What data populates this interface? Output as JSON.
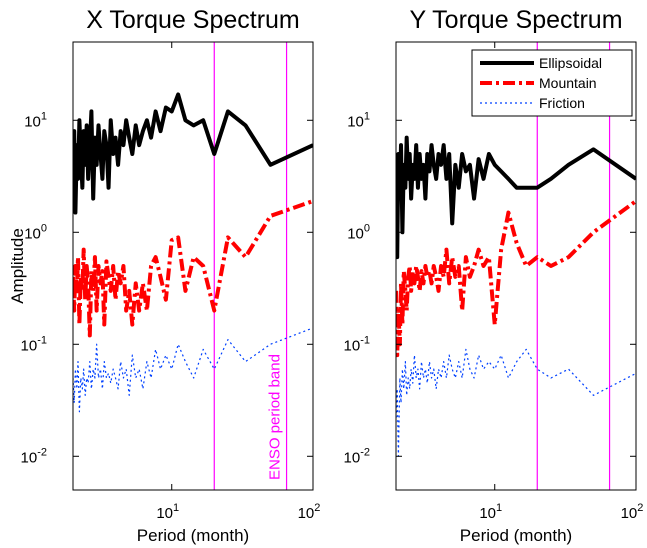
{
  "chart_data": [
    {
      "type": "line",
      "title": "X Torque Spectrum",
      "xlabel": "Period (month)",
      "ylabel": "Amplitude",
      "xlog": true,
      "ylog": true,
      "xlim": [
        2,
        100
      ],
      "ylim": [
        0.005,
        50
      ],
      "xticks": [
        {
          "value": 10,
          "label": "10^1"
        },
        {
          "value": 100,
          "label": "10^2"
        }
      ],
      "yticks": [
        {
          "value": 0.01,
          "label": "10^-2"
        },
        {
          "value": 0.1,
          "label": "10^-1"
        },
        {
          "value": 1,
          "label": "10^0"
        },
        {
          "value": 10,
          "label": "10^1"
        }
      ],
      "vlines": [
        20,
        65
      ],
      "vline_color": "#ff00ff",
      "annotation": "ENSO period band",
      "x": [
        2,
        2.04,
        2.08,
        2.13,
        2.17,
        2.22,
        2.27,
        2.33,
        2.38,
        2.44,
        2.5,
        2.56,
        2.63,
        2.7,
        2.78,
        2.86,
        2.94,
        3.03,
        3.13,
        3.23,
        3.33,
        3.45,
        3.57,
        3.7,
        3.85,
        4,
        4.17,
        4.35,
        4.55,
        4.76,
        5,
        5.26,
        5.56,
        5.88,
        6.25,
        6.67,
        7.14,
        7.69,
        8.33,
        9.09,
        10,
        11.1,
        12.5,
        14.3,
        16.7,
        20,
        25,
        33.3,
        50,
        100
      ],
      "series": [
        {
          "color": "#000000",
          "style": "solid",
          "values": [
            4,
            8,
            1.5,
            6,
            3,
            10,
            5,
            2.5,
            8,
            4,
            9,
            3,
            6,
            12,
            2,
            7,
            4,
            9,
            5,
            3,
            8,
            6,
            2.5,
            10,
            5,
            7,
            4,
            8,
            6,
            10,
            7,
            5,
            9,
            6,
            8,
            10,
            7,
            12,
            8,
            13,
            12,
            17,
            10,
            9,
            10,
            5,
            12,
            9,
            4,
            6
          ]
        },
        {
          "color": "#ff0000",
          "style": "dashdot",
          "values": [
            0.4,
            0.2,
            0.5,
            0.3,
            0.6,
            0.15,
            0.4,
            0.3,
            0.7,
            0.25,
            0.5,
            0.35,
            0.12,
            0.45,
            0.3,
            0.6,
            0.2,
            0.5,
            0.35,
            0.45,
            0.15,
            0.55,
            0.4,
            0.3,
            0.5,
            0.25,
            0.45,
            0.35,
            0.5,
            0.2,
            0.3,
            0.15,
            0.35,
            0.2,
            0.35,
            0.2,
            0.5,
            0.6,
            0.4,
            0.25,
            0.85,
            0.9,
            0.3,
            0.6,
            0.5,
            0.2,
            0.9,
            0.6,
            1.4,
            1.9
          ]
        },
        {
          "color": "#0040ff",
          "style": "dotted",
          "values": [
            0.05,
            0.03,
            0.06,
            0.04,
            0.07,
            0.025,
            0.05,
            0.04,
            0.06,
            0.035,
            0.05,
            0.045,
            0.07,
            0.04,
            0.06,
            0.05,
            0.1,
            0.05,
            0.06,
            0.04,
            0.07,
            0.05,
            0.055,
            0.045,
            0.06,
            0.05,
            0.04,
            0.07,
            0.05,
            0.06,
            0.035,
            0.08,
            0.05,
            0.06,
            0.04,
            0.07,
            0.05,
            0.09,
            0.06,
            0.08,
            0.06,
            0.1,
            0.07,
            0.05,
            0.09,
            0.06,
            0.11,
            0.07,
            0.1,
            0.14
          ]
        }
      ]
    },
    {
      "type": "line",
      "title": "Y Torque Spectrum",
      "xlabel": "Period (month)",
      "xlog": true,
      "ylog": true,
      "xlim": [
        2,
        100
      ],
      "ylim": [
        0.005,
        50
      ],
      "xticks": [
        {
          "value": 10,
          "label": "10^1"
        },
        {
          "value": 100,
          "label": "10^2"
        }
      ],
      "yticks": [
        {
          "value": 0.01,
          "label": "10^-2"
        },
        {
          "value": 0.1,
          "label": "10^-1"
        },
        {
          "value": 1,
          "label": "10^0"
        },
        {
          "value": 10,
          "label": "10^1"
        }
      ],
      "vlines": [
        20,
        65
      ],
      "vline_color": "#ff00ff",
      "legend": "upper right",
      "x": [
        2,
        2.04,
        2.08,
        2.13,
        2.17,
        2.22,
        2.27,
        2.33,
        2.38,
        2.44,
        2.5,
        2.56,
        2.63,
        2.7,
        2.78,
        2.86,
        2.94,
        3.03,
        3.13,
        3.23,
        3.33,
        3.45,
        3.57,
        3.7,
        3.85,
        4,
        4.17,
        4.35,
        4.55,
        4.76,
        5,
        5.26,
        5.56,
        5.88,
        6.25,
        6.67,
        7.14,
        7.69,
        8.33,
        9.09,
        10,
        11.1,
        12.5,
        14.3,
        16.7,
        20,
        25,
        33.3,
        50,
        100
      ],
      "series": [
        {
          "name": "Ellipsoidal",
          "color": "#000000",
          "style": "solid",
          "values": [
            3,
            0.6,
            5,
            2,
            6,
            1,
            4,
            2.5,
            7,
            3,
            5,
            2,
            4,
            3,
            6,
            2.5,
            5,
            3,
            4,
            2,
            5,
            3.5,
            6,
            4,
            3,
            5,
            4,
            6,
            3,
            5,
            1.2,
            4,
            2.5,
            5,
            3.5,
            4,
            2,
            4.5,
            3,
            5,
            4,
            3.5,
            3,
            2.5,
            2.5,
            2.5,
            3,
            4,
            5.5,
            3
          ]
        },
        {
          "name": "Mountain",
          "color": "#ff0000",
          "style": "dashdot",
          "values": [
            0.3,
            0.08,
            0.2,
            0.1,
            0.35,
            0.15,
            0.45,
            0.3,
            0.2,
            0.4,
            0.5,
            0.3,
            0.45,
            0.35,
            0.5,
            0.4,
            0.3,
            0.45,
            0.35,
            0.5,
            0.4,
            0.45,
            0.35,
            0.5,
            0.4,
            0.3,
            0.5,
            0.4,
            0.7,
            0.35,
            0.6,
            0.4,
            0.5,
            0.2,
            0.6,
            0.4,
            0.5,
            0.7,
            0.5,
            0.6,
            0.15,
            0.7,
            1.5,
            0.8,
            0.5,
            0.6,
            0.5,
            0.6,
            1.0,
            1.9
          ]
        },
        {
          "name": "Friction",
          "color": "#0040ff",
          "style": "dotted",
          "values": [
            0.02,
            0.04,
            0.01,
            0.05,
            0.03,
            0.06,
            0.04,
            0.07,
            0.035,
            0.05,
            0.04,
            0.06,
            0.045,
            0.08,
            0.05,
            0.06,
            0.04,
            0.07,
            0.05,
            0.06,
            0.045,
            0.07,
            0.05,
            0.06,
            0.04,
            0.06,
            0.05,
            0.07,
            0.05,
            0.08,
            0.06,
            0.05,
            0.07,
            0.05,
            0.09,
            0.06,
            0.05,
            0.08,
            0.06,
            0.07,
            0.06,
            0.08,
            0.05,
            0.07,
            0.09,
            0.06,
            0.05,
            0.06,
            0.035,
            0.055
          ]
        }
      ]
    }
  ]
}
